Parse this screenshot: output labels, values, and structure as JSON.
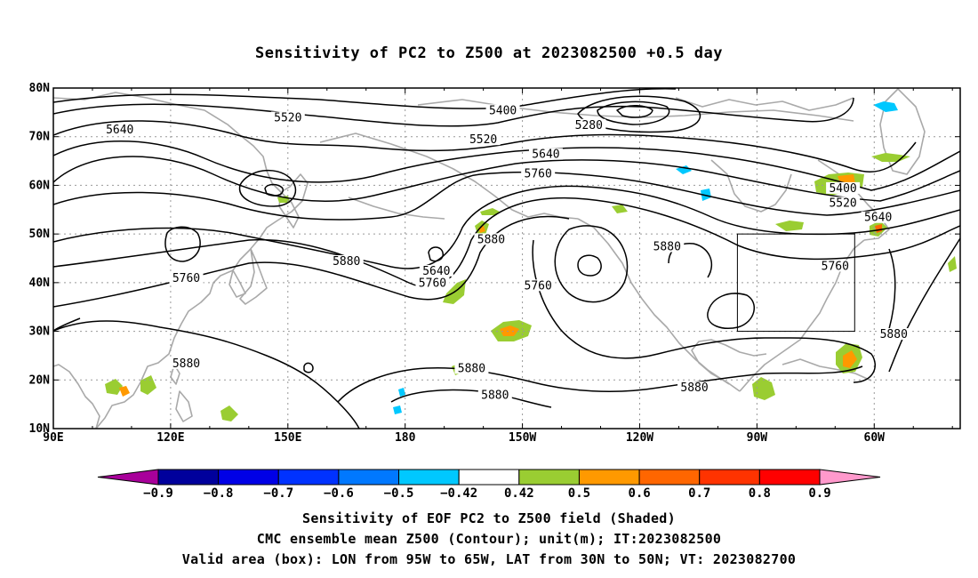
{
  "title": "Sensitivity of PC2 to Z500 at 2023082500 +0.5 day",
  "axes": {
    "lat_labels": [
      "80N",
      "70N",
      "60N",
      "50N",
      "40N",
      "30N",
      "20N",
      "10N"
    ],
    "lon_labels": [
      "90E",
      "120E",
      "150E",
      "180",
      "150W",
      "120W",
      "90W",
      "60W"
    ]
  },
  "map_extent": {
    "lon_min": 90,
    "lon_max": 322,
    "lat_min": 10,
    "lat_max": 80
  },
  "valid_box": {
    "lon_min": 265,
    "lon_max": 295,
    "lat_min": 30,
    "lat_max": 50
  },
  "contour_labels": [
    {
      "text": "5520",
      "lon": 150,
      "lat": 73.5
    },
    {
      "text": "5640",
      "lon": 107,
      "lat": 71
    },
    {
      "text": "5400",
      "lon": 205,
      "lat": 75
    },
    {
      "text": "5280",
      "lon": 227,
      "lat": 72
    },
    {
      "text": "5520",
      "lon": 200,
      "lat": 69
    },
    {
      "text": "5640",
      "lon": 216,
      "lat": 66
    },
    {
      "text": "5760",
      "lon": 214,
      "lat": 62
    },
    {
      "text": "5400",
      "lon": 292,
      "lat": 59
    },
    {
      "text": "5520",
      "lon": 292,
      "lat": 56
    },
    {
      "text": "5640",
      "lon": 301,
      "lat": 53
    },
    {
      "text": "5880",
      "lon": 165,
      "lat": 44
    },
    {
      "text": "5640",
      "lon": 188,
      "lat": 42
    },
    {
      "text": "5760",
      "lon": 187,
      "lat": 39.5
    },
    {
      "text": "5760",
      "lon": 124,
      "lat": 40.5
    },
    {
      "text": "5880",
      "lon": 202,
      "lat": 48.5
    },
    {
      "text": "5760",
      "lon": 214,
      "lat": 39
    },
    {
      "text": "5880",
      "lon": 247,
      "lat": 47
    },
    {
      "text": "5760",
      "lon": 290,
      "lat": 43
    },
    {
      "text": "5880",
      "lon": 305,
      "lat": 29
    },
    {
      "text": "5880",
      "lon": 124,
      "lat": 23
    },
    {
      "text": "5880",
      "lon": 197,
      "lat": 22
    },
    {
      "text": "5880",
      "lon": 203,
      "lat": 16.5
    },
    {
      "text": "5880",
      "lon": 254,
      "lat": 18
    }
  ],
  "colorbar": {
    "colors": [
      "#a8009a",
      "#00009c",
      "#0000e6",
      "#0032ff",
      "#0078ff",
      "#00c8ff",
      "#ffffff",
      "#9acd32",
      "#ff9900",
      "#ff6600",
      "#ff3300",
      "#ff0000",
      "#ff99cc"
    ],
    "labels": [
      "-0.9",
      "-0.8",
      "-0.7",
      "-0.6",
      "-0.5",
      "-0.42",
      "0.42",
      "0.5",
      "0.6",
      "0.7",
      "0.8",
      "0.9"
    ]
  },
  "shading_colors": {
    "positive_low": "#9acd32",
    "positive_mid": "#ff9900",
    "positive_high": "#ff3300",
    "negative_low": "#00c8ff",
    "coast": "#a9a9a9"
  },
  "captions": [
    "Sensitivity of EOF PC2 to Z500 field (Shaded)",
    "CMC ensemble mean Z500 (Contour); unit(m); IT:2023082500",
    "Valid area (box): LON from 95W to 65W, LAT from 30N to 50N; VT: 2023082700"
  ]
}
